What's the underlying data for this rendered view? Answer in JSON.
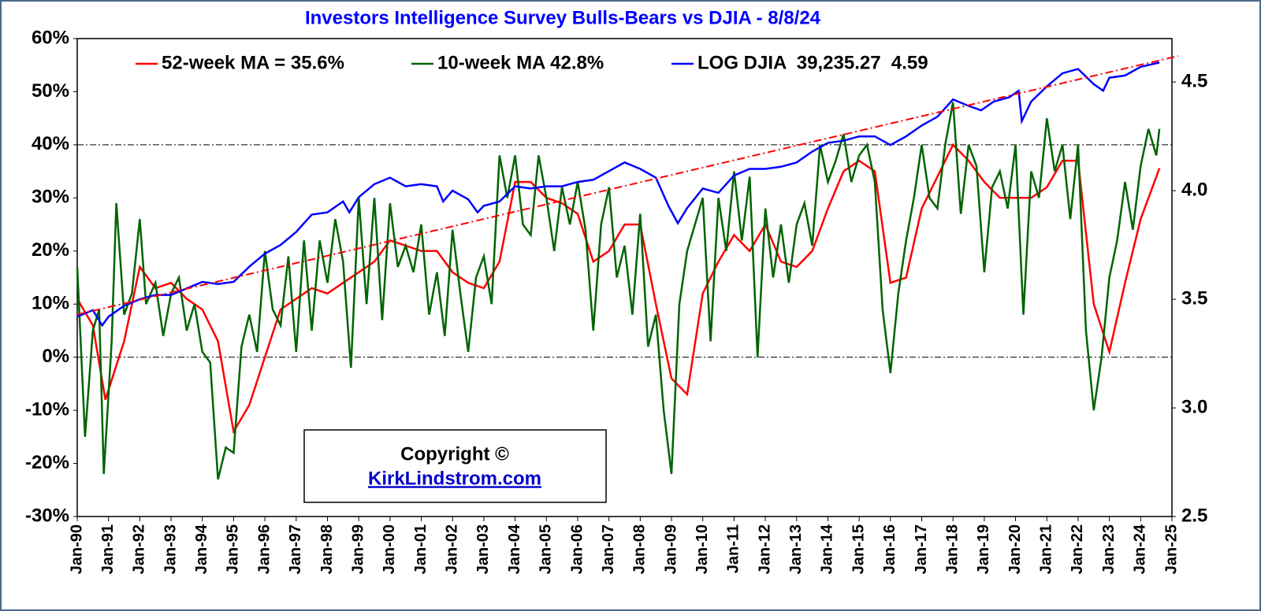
{
  "chart_data": {
    "type": "line",
    "title": "Investors Intelligence Survey Bulls-Bears vs DJIA - 8/8/24",
    "xlim": [
      1990,
      2025
    ],
    "xticks": [
      {
        "value": 1990,
        "label": "Jan-90"
      },
      {
        "value": 1991,
        "label": "Jan-91"
      },
      {
        "value": 1992,
        "label": "Jan-92"
      },
      {
        "value": 1993,
        "label": "Jan-93"
      },
      {
        "value": 1994,
        "label": "Jan-94"
      },
      {
        "value": 1995,
        "label": "Jan-95"
      },
      {
        "value": 1996,
        "label": "Jan-96"
      },
      {
        "value": 1997,
        "label": "Jan-97"
      },
      {
        "value": 1998,
        "label": "Jan-98"
      },
      {
        "value": 1999,
        "label": "Jan-99"
      },
      {
        "value": 2000,
        "label": "Jan-00"
      },
      {
        "value": 2001,
        "label": "Jan-01"
      },
      {
        "value": 2002,
        "label": "Jan-02"
      },
      {
        "value": 2003,
        "label": "Jan-03"
      },
      {
        "value": 2004,
        "label": "Jan-04"
      },
      {
        "value": 2005,
        "label": "Jan-05"
      },
      {
        "value": 2006,
        "label": "Jan-06"
      },
      {
        "value": 2007,
        "label": "Jan-07"
      },
      {
        "value": 2008,
        "label": "Jan-08"
      },
      {
        "value": 2009,
        "label": "Jan-09"
      },
      {
        "value": 2010,
        "label": "Jan-10"
      },
      {
        "value": 2011,
        "label": "Jan-11"
      },
      {
        "value": 2012,
        "label": "Jan-12"
      },
      {
        "value": 2013,
        "label": "Jan-13"
      },
      {
        "value": 2014,
        "label": "Jan-14"
      },
      {
        "value": 2015,
        "label": "Jan-15"
      },
      {
        "value": 2016,
        "label": "Jan-16"
      },
      {
        "value": 2017,
        "label": "Jan-17"
      },
      {
        "value": 2018,
        "label": "Jan-18"
      },
      {
        "value": 2019,
        "label": "Jan-19"
      },
      {
        "value": 2020,
        "label": "Jan-20"
      },
      {
        "value": 2021,
        "label": "Jan-21"
      },
      {
        "value": 2022,
        "label": "Jan-22"
      },
      {
        "value": 2023,
        "label": "Jan-23"
      },
      {
        "value": 2024,
        "label": "Jan-24"
      },
      {
        "value": 2025,
        "label": "Jan-25"
      }
    ],
    "ylim": [
      -30,
      60
    ],
    "yticks": [
      {
        "value": -30,
        "label": "-30%"
      },
      {
        "value": -20,
        "label": "-20%"
      },
      {
        "value": -10,
        "label": "-10%"
      },
      {
        "value": 0,
        "label": "0%"
      },
      {
        "value": 10,
        "label": "10%"
      },
      {
        "value": 20,
        "label": "20%"
      },
      {
        "value": 30,
        "label": "30%"
      },
      {
        "value": 40,
        "label": "40%"
      },
      {
        "value": 50,
        "label": "50%"
      },
      {
        "value": 60,
        "label": "60%"
      }
    ],
    "y2lim": [
      2.5,
      4.7
    ],
    "y2ticks": [
      2.5,
      {
        "value": 3.0,
        "label": "3.0"
      },
      3.5,
      {
        "value": 4.0,
        "label": "4.0"
      },
      4.5
    ],
    "reference_lines": [
      0,
      40
    ],
    "trend": {
      "axis": "y2",
      "color": "#ff0000",
      "x": [
        1990,
        2025.2
      ],
      "values": [
        3.43,
        4.62
      ]
    },
    "annotation": {
      "line1": "Copyright ©",
      "line2": "KirkLindstrom.com"
    },
    "series": [
      {
        "name": "52-week MA = 35.6%",
        "color": "#ff0000",
        "x": [
          1990,
          1990.5,
          1990.9,
          1991.5,
          1992,
          1992.5,
          1993,
          1993.5,
          1994,
          1994.5,
          1995,
          1995.5,
          1996,
          1996.5,
          1997,
          1997.5,
          1998,
          1998.5,
          1999,
          1999.5,
          2000,
          2000.5,
          2001,
          2001.5,
          2002,
          2002.5,
          2003,
          2003.5,
          2004,
          2004.5,
          2005,
          2005.5,
          2006,
          2006.5,
          2007,
          2007.5,
          2008,
          2008.5,
          2009,
          2009.5,
          2010,
          2010.5,
          2011,
          2011.5,
          2012,
          2012.5,
          2013,
          2013.5,
          2014,
          2014.5,
          2015,
          2015.5,
          2016,
          2016.5,
          2017,
          2017.5,
          2018,
          2018.5,
          2019,
          2019.5,
          2020,
          2020.5,
          2021,
          2021.5,
          2022,
          2022.5,
          2023,
          2023.5,
          2024,
          2024.5,
          2024.6
        ],
        "values": [
          11,
          6,
          -8,
          3,
          17,
          13,
          14,
          11,
          9,
          3,
          -14,
          -9,
          0,
          9,
          11,
          13,
          12,
          14,
          16,
          18,
          22,
          21,
          20,
          20,
          16,
          14,
          13,
          18,
          33,
          33,
          30,
          29,
          27,
          18,
          20,
          25,
          25,
          10,
          -4,
          -7,
          12,
          18,
          23,
          20,
          25,
          18,
          17,
          20,
          28,
          35,
          37,
          35,
          14,
          15,
          28,
          34,
          40,
          37,
          33,
          30,
          30,
          30,
          32,
          37,
          37,
          10,
          1,
          14,
          26,
          34,
          35.6
        ]
      },
      {
        "name": "10-week MA 42.8%",
        "color": "#006400",
        "x": [
          1990,
          1990.25,
          1990.5,
          1990.7,
          1990.85,
          1991.1,
          1991.25,
          1991.5,
          1991.75,
          1992,
          1992.2,
          1992.5,
          1992.75,
          1993,
          1993.25,
          1993.5,
          1993.75,
          1994,
          1994.25,
          1994.5,
          1994.75,
          1995,
          1995.25,
          1995.5,
          1995.75,
          1996,
          1996.25,
          1996.5,
          1996.75,
          1997,
          1997.25,
          1997.5,
          1997.75,
          1998,
          1998.25,
          1998.5,
          1998.75,
          1999,
          1999.25,
          1999.5,
          1999.75,
          2000,
          2000.25,
          2000.5,
          2000.75,
          2001,
          2001.25,
          2001.5,
          2001.75,
          2002,
          2002.25,
          2002.5,
          2002.75,
          2003,
          2003.25,
          2003.5,
          2003.75,
          2004,
          2004.25,
          2004.5,
          2004.75,
          2005,
          2005.25,
          2005.5,
          2005.75,
          2006,
          2006.25,
          2006.5,
          2006.75,
          2007,
          2007.25,
          2007.5,
          2007.75,
          2008,
          2008.25,
          2008.5,
          2008.75,
          2009,
          2009.25,
          2009.5,
          2009.75,
          2010,
          2010.25,
          2010.5,
          2010.75,
          2011,
          2011.25,
          2011.5,
          2011.75,
          2012,
          2012.25,
          2012.5,
          2012.75,
          2013,
          2013.25,
          2013.5,
          2013.75,
          2014,
          2014.25,
          2014.5,
          2014.75,
          2015,
          2015.25,
          2015.5,
          2015.75,
          2016,
          2016.25,
          2016.5,
          2016.75,
          2017,
          2017.25,
          2017.5,
          2017.75,
          2018,
          2018.25,
          2018.5,
          2018.75,
          2019,
          2019.25,
          2019.5,
          2019.75,
          2020,
          2020.25,
          2020.5,
          2020.75,
          2021,
          2021.25,
          2021.5,
          2021.75,
          2022,
          2022.25,
          2022.5,
          2022.75,
          2023,
          2023.25,
          2023.5,
          2023.75,
          2024,
          2024.25,
          2024.5,
          2024.6
        ],
        "values": [
          17,
          -15,
          5,
          9,
          -22,
          3,
          29,
          8,
          12,
          26,
          10,
          14,
          4,
          12,
          15,
          5,
          10,
          1,
          -1,
          -23,
          -17,
          -18,
          2,
          8,
          1,
          20,
          9,
          6,
          19,
          1,
          22,
          5,
          22,
          14,
          26,
          18,
          -2,
          30,
          10,
          30,
          7,
          29,
          17,
          21,
          16,
          25,
          8,
          16,
          4,
          24,
          12,
          1,
          15,
          19,
          10,
          38,
          30,
          38,
          25,
          23,
          38,
          30,
          20,
          32,
          25,
          33,
          24,
          5,
          25,
          32,
          15,
          21,
          8,
          27,
          2,
          8,
          -10,
          -22,
          10,
          20,
          25,
          30,
          3,
          30,
          20,
          35,
          22,
          34,
          0,
          28,
          15,
          25,
          14,
          25,
          29,
          21,
          40,
          33,
          37,
          42,
          33,
          38,
          40,
          33,
          9,
          -3,
          12,
          22,
          30,
          40,
          30,
          28,
          40,
          48,
          27,
          40,
          36,
          16,
          32,
          35,
          28,
          40,
          8,
          35,
          30,
          45,
          35,
          40,
          26,
          40,
          5,
          -10,
          0,
          15,
          22,
          33,
          24,
          36,
          43,
          38,
          43
        ]
      },
      {
        "name": "LOG DJIA  39,235.27  4.59",
        "color": "#0000ff",
        "axis": "y2",
        "x": [
          1990,
          1990.5,
          1990.8,
          1991,
          1991.5,
          1992,
          1992.5,
          1993,
          1993.5,
          1994,
          1994.5,
          1995,
          1995.5,
          1996,
          1996.5,
          1997,
          1997.5,
          1998,
          1998.5,
          1998.7,
          1999,
          1999.5,
          2000,
          2000.5,
          2001,
          2001.5,
          2001.7,
          2002,
          2002.5,
          2002.8,
          2003,
          2003.5,
          2004,
          2004.5,
          2005,
          2005.5,
          2006,
          2006.5,
          2007,
          2007.5,
          2008,
          2008.5,
          2008.9,
          2009.2,
          2009.5,
          2010,
          2010.5,
          2011,
          2011.5,
          2012,
          2012.5,
          2013,
          2013.5,
          2014,
          2014.5,
          2015,
          2015.5,
          2016,
          2016.5,
          2017,
          2017.5,
          2018,
          2018.5,
          2018.9,
          2019.3,
          2019.8,
          2020.1,
          2020.2,
          2020.5,
          2021,
          2021.5,
          2022,
          2022.5,
          2022.8,
          2023,
          2023.5,
          2024,
          2024.6
        ],
        "values": [
          3.42,
          3.45,
          3.38,
          3.42,
          3.47,
          3.5,
          3.52,
          3.52,
          3.55,
          3.58,
          3.57,
          3.58,
          3.65,
          3.71,
          3.75,
          3.81,
          3.89,
          3.9,
          3.95,
          3.9,
          3.97,
          4.03,
          4.06,
          4.02,
          4.03,
          4.02,
          3.95,
          4,
          3.96,
          3.9,
          3.93,
          3.95,
          4.02,
          4.01,
          4.02,
          4.02,
          4.04,
          4.05,
          4.09,
          4.13,
          4.1,
          4.06,
          3.93,
          3.85,
          3.92,
          4.01,
          3.99,
          4.07,
          4.1,
          4.1,
          4.11,
          4.13,
          4.18,
          4.22,
          4.23,
          4.25,
          4.25,
          4.21,
          4.25,
          4.3,
          4.34,
          4.42,
          4.39,
          4.37,
          4.41,
          4.43,
          4.46,
          4.32,
          4.41,
          4.48,
          4.54,
          4.56,
          4.49,
          4.46,
          4.52,
          4.53,
          4.57,
          4.59
        ]
      }
    ]
  }
}
